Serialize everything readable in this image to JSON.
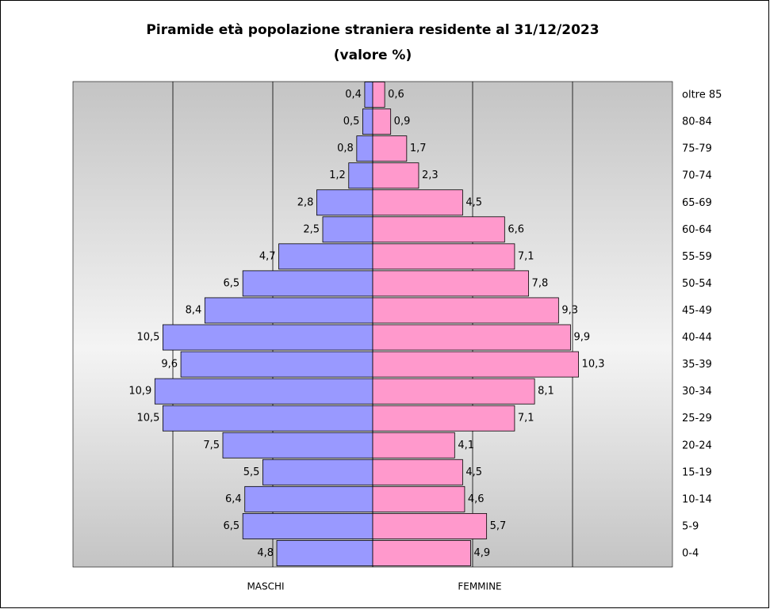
{
  "chart_data": {
    "type": "pyramid",
    "title": "Piramide età popolazione straniera residente al 31/12/2023",
    "subtitle": "(valore %)",
    "categories": [
      "oltre 85",
      "80-84",
      "75-79",
      "70-74",
      "65-69",
      "60-64",
      "55-59",
      "50-54",
      "45-49",
      "40-44",
      "35-39",
      "30-34",
      "25-29",
      "20-24",
      "15-19",
      "10-14",
      "5-9",
      "0-4"
    ],
    "series": [
      {
        "name": "MASCHI",
        "color": "#9999ff",
        "values": [
          0.4,
          0.5,
          0.8,
          1.2,
          2.8,
          2.5,
          4.7,
          6.5,
          8.4,
          10.5,
          9.6,
          10.9,
          10.5,
          7.5,
          5.5,
          6.4,
          6.5,
          4.8
        ],
        "value_labels": [
          "0,4",
          "0,5",
          "0,8",
          "1,2",
          "2,8",
          "2,5",
          "4,7",
          "6,5",
          "8,4",
          "10,5",
          "9,6",
          "10,9",
          "10,5",
          "7,5",
          "5,5",
          "6,4",
          "6,5",
          "4,8"
        ]
      },
      {
        "name": "FEMMINE",
        "color": "#ff99cc",
        "values": [
          0.6,
          0.9,
          1.7,
          2.3,
          4.5,
          6.6,
          7.1,
          7.8,
          9.3,
          9.9,
          10.3,
          8.1,
          7.1,
          4.1,
          4.5,
          4.6,
          5.7,
          4.9
        ],
        "value_labels": [
          "0,6",
          "0,9",
          "1,7",
          "2,3",
          "4,5",
          "6,6",
          "7,1",
          "7,8",
          "9,3",
          "9,9",
          "10,3",
          "8,1",
          "7,1",
          "4,1",
          "4,5",
          "4,6",
          "5,7",
          "4,9"
        ]
      }
    ],
    "xlim": [
      0,
      15
    ],
    "xticks": [
      0,
      5,
      10
    ],
    "grid": true
  }
}
